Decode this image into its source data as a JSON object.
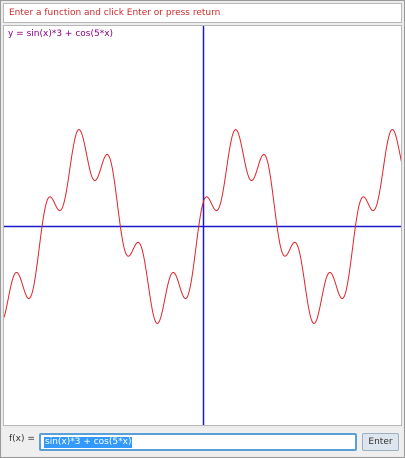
{
  "instruction": "Enter a function and click Enter or press return",
  "plot": {
    "equation_label": "y = sin(x)*3 + cos(5*x)",
    "curve_color": "#e0242a",
    "axis_color": "#1a1acc",
    "x_range": [
      -8,
      8
    ],
    "y_range": [
      -8,
      8
    ]
  },
  "input_bar": {
    "label": "f(x) =",
    "value": "sin(x)*3 + cos(5*x)",
    "enter_label": "Enter"
  }
}
